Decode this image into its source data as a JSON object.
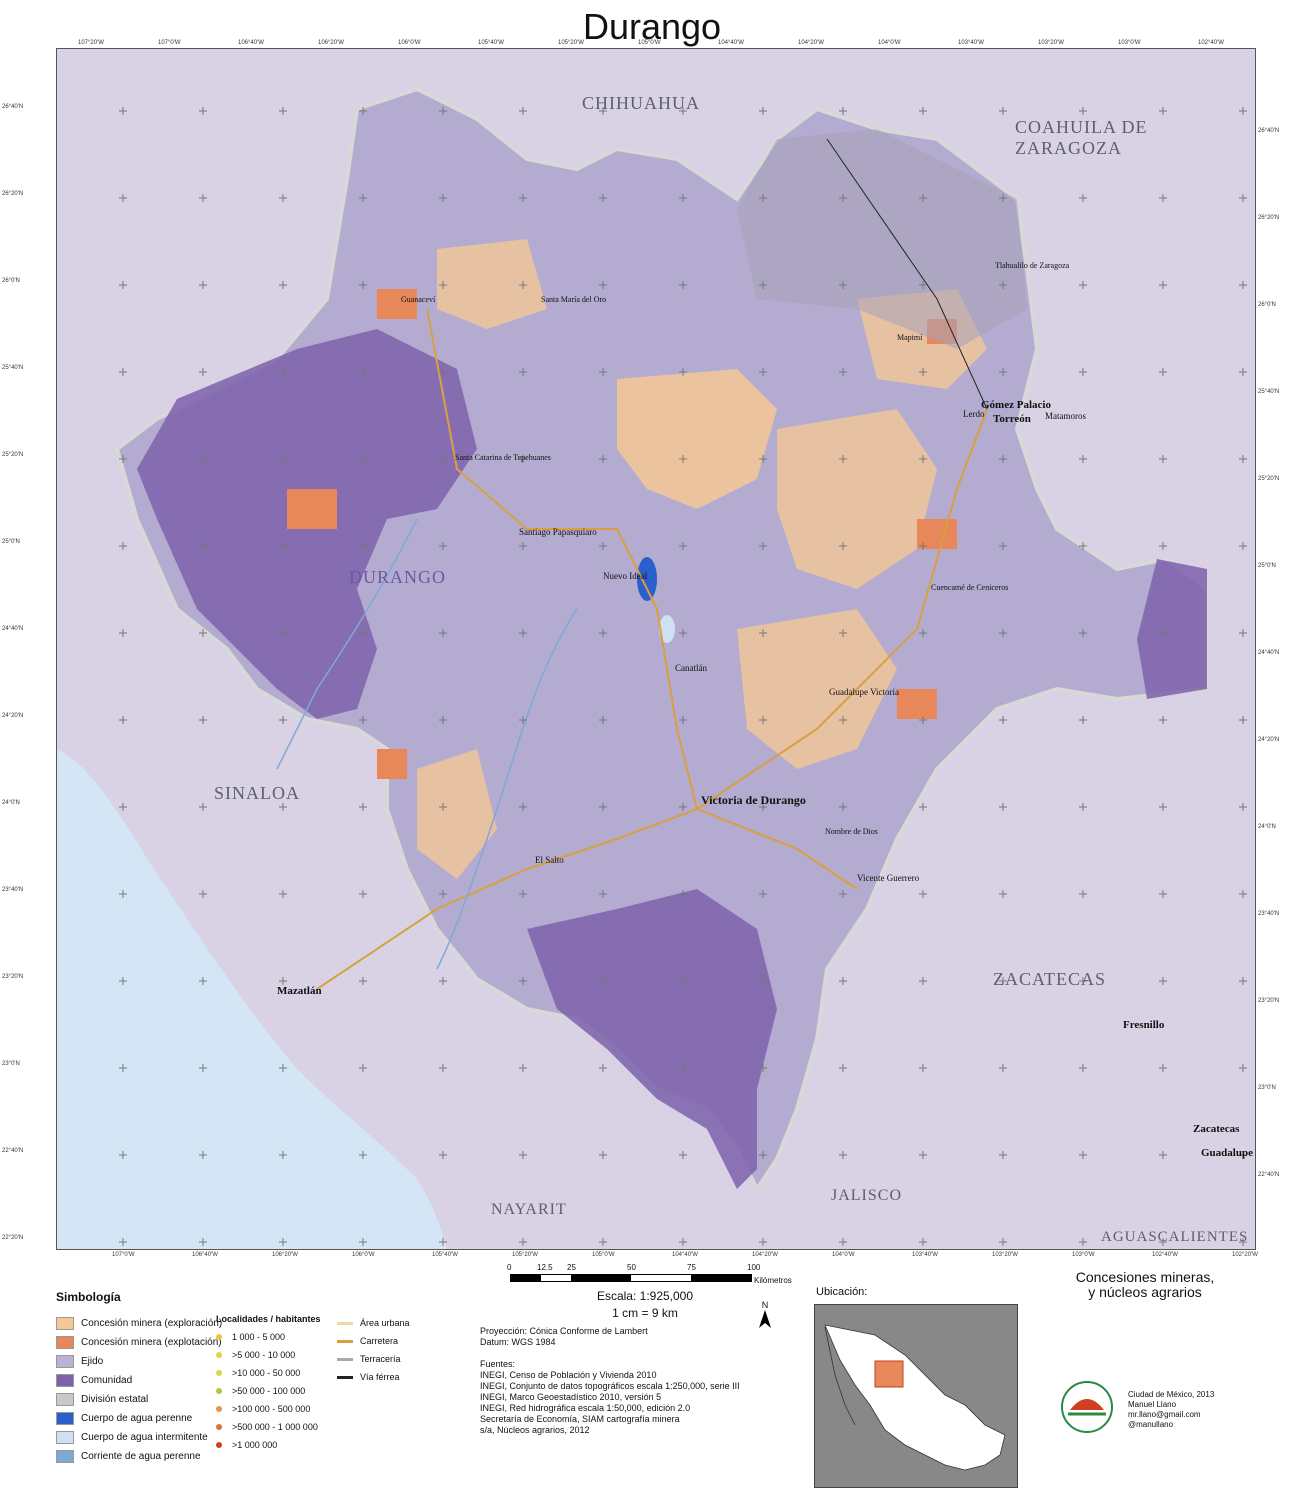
{
  "title": "Durango",
  "subtitle_line1": "Concesiones mineras,",
  "subtitle_line2": "y núcleos agrarios",
  "top_ticks": [
    "107°20'W",
    "107°0'W",
    "106°40'W",
    "106°20'W",
    "106°0'W",
    "105°40'W",
    "105°20'W",
    "105°0'W",
    "104°40'W",
    "104°20'W",
    "104°0'W",
    "103°40'W",
    "103°20'W",
    "103°0'W",
    "102°40'W"
  ],
  "bottom_ticks": [
    "107°0'W",
    "106°40'W",
    "106°20'W",
    "106°0'W",
    "105°40'W",
    "105°20'W",
    "105°0'W",
    "104°40'W",
    "104°20'W",
    "104°0'W",
    "103°40'W",
    "103°20'W",
    "103°0'W",
    "102°40'W",
    "102°20'W"
  ],
  "left_ticks": [
    "26°40'N",
    "26°20'N",
    "26°0'N",
    "25°40'N",
    "25°20'N",
    "25°0'N",
    "24°40'N",
    "24°20'N",
    "24°0'N",
    "23°40'N",
    "23°20'N",
    "23°0'N",
    "22°40'N",
    "22°20'N"
  ],
  "right_ticks": [
    "26°40'N",
    "26°20'N",
    "26°0'N",
    "25°40'N",
    "25°20'N",
    "25°0'N",
    "24°40'N",
    "24°20'N",
    "24°0'N",
    "23°40'N",
    "23°20'N",
    "23°0'N",
    "22°40'N"
  ],
  "states": {
    "chihuahua": "CHIHUAHUA",
    "coahuila": "COAHUILA DE ZARAGOZA",
    "durango": "DURANGO",
    "sinaloa": "SINALOA",
    "zacatecas": "ZACATECAS",
    "nayarit": "NAYARIT",
    "jalisco": "JALISCO",
    "aguascalientes": "AGUASCALIENTES"
  },
  "cities": {
    "victoria": "Victoria de Durango",
    "gomez": "Gómez Palacio",
    "torreon": "Torreón",
    "lerdo": "Lerdo",
    "matamoros": "Matamoros",
    "mazatlan": "Mazatlán",
    "fresnillo": "Fresnillo",
    "zacatecas": "Zacatecas",
    "guadalupe": "Guadalupe",
    "guadalupe_victoria": "Guadalupe Victoria",
    "vicente_guerrero": "Vicente Guerrero",
    "nuevo_ideal": "Nuevo Ideal",
    "canatlan": "Canatlán",
    "santiago": "Santiago Papasquiaro",
    "el_salto": "El Salto",
    "santa_maria": "Santa María del Oro",
    "guanacevi": "Guanaceví",
    "tepehuanes": "Santa Catarina de Tepehuanes",
    "mapimi": "Mapimí",
    "cuencame": "Cuencamé de Ceniceros",
    "nombre_dios": "Nombre de Dios",
    "tlahualilo": "Tlahualilo de Zaragoza"
  },
  "scale": {
    "ticks": [
      "0",
      "12.5",
      "25",
      "50",
      "75",
      "100"
    ],
    "unit": "Kilómetros",
    "ratio": "Escala:  1:925,000",
    "equiv": "1 cm = 9 km"
  },
  "legend": {
    "title": "Simbología",
    "items": [
      {
        "label": "Concesión minera (exploración)",
        "color": "#f4c896"
      },
      {
        "label": "Concesión minera (explotación)",
        "color": "#e8875a"
      },
      {
        "label": "Ejido",
        "color": "#b9b4d4"
      },
      {
        "label": "Comunidad",
        "color": "#7e61ad"
      },
      {
        "label": "División estatal",
        "color": "#c8c8c8"
      },
      {
        "label": "Cuerpo de agua perenne",
        "color": "#2a5fcc"
      },
      {
        "label": "Cuerpo de agua intermitente",
        "color": "#cfe0f4"
      },
      {
        "label": "Corriente de agua perenne",
        "color": "#7fa8d8"
      }
    ],
    "localidades_title": "Localidades / habitantes",
    "localidades": [
      {
        "label": "1 000 - 5 000",
        "color": "#f0c040"
      },
      {
        "label": ">5 000 - 10 000",
        "color": "#e8d040"
      },
      {
        "label": ">10 000 - 50 000",
        "color": "#d8d840"
      },
      {
        "label": ">50 000 - 100 000",
        "color": "#a8c840"
      },
      {
        "label": ">100 000 - 500 000",
        "color": "#e89050"
      },
      {
        "label": ">500 000 - 1 000 000",
        "color": "#e07040"
      },
      {
        "label": ">1 000 000",
        "color": "#d04020"
      }
    ],
    "infra": [
      {
        "label": "Área urbana",
        "color": "#f0d8a0"
      },
      {
        "label": "Carretera",
        "color": "#d8a040"
      },
      {
        "label": "Terracería",
        "color": "#aaaaaa"
      },
      {
        "label": "Vía férrea",
        "color": "#222222"
      }
    ]
  },
  "sources": {
    "proj1": "Proyección: Cónica Conforme de Lambert",
    "proj2": "Datum: WGS 1984",
    "title": "Fuentes:",
    "lines": [
      "INEGI, Censo de Población y Vivienda 2010",
      "INEGI, Conjunto de datos topográficos escala 1:250,000, serie III",
      "INEGI, Marco Geoestadístico 2010, versión 5",
      "INEGI, Red hidrográfica escala 1:50,000, edición 2.0",
      "Secretaría de Economía, SIAM cartografía minera",
      "s/a, Núcleos agrarios, 2012"
    ]
  },
  "ubicacion": "Ubicación:",
  "north": "N",
  "credit": [
    "Ciudad de México, 2013",
    "Manuel Llano",
    "mr.llano@gmail.com",
    "@manullano"
  ]
}
